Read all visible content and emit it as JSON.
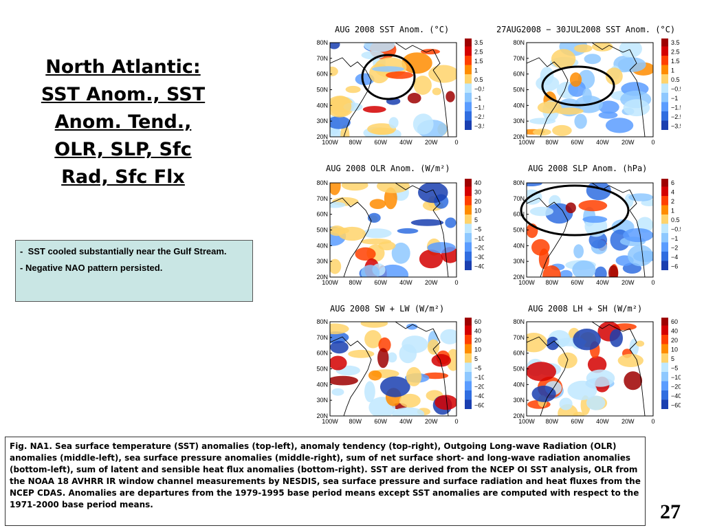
{
  "slide": {
    "title_lines": [
      "North Atlantic:",
      "SST Anom., SST",
      "Anom. Tend.,",
      "OLR, SLP, Sfc",
      "Rad, Sfc Flx"
    ],
    "page_number": "27"
  },
  "notes": [
    "SST cooled substantially near the Gulf Stream.",
    "Negative NAO pattern persisted."
  ],
  "caption": "Fig. NA1. Sea surface temperature (SST) anomalies (top-left), anomaly tendency (top-right), Outgoing Long-wave Radiation (OLR) anomalies (middle-left), sea surface pressure anomalies (middle-right), sum of net surface short- and long-wave radiation anomalies (bottom-left), sum of latent and sensible heat flux anomalies (bottom-right). SST are derived from the NCEP OI SST analysis, OLR from the NOAA 18 AVHRR IR window channel measurements by NESDIS, sea surface pressure and surface radiation and heat fluxes from the NCEP CDAS. Anomalies are departures from the 1979-1995 base period means except SST anomalies are computed with respect to the 1971-2000 base period means.",
  "axes": {
    "lat_labels": [
      "80N",
      "70N",
      "60N",
      "50N",
      "40N",
      "30N",
      "20N"
    ],
    "lon_labels": [
      "100W",
      "80W",
      "60W",
      "40W",
      "20W",
      "0"
    ]
  },
  "maps": [
    {
      "title": "AUG 2008 SST Anom. (°C)",
      "legend": [
        "3.5",
        "2.5",
        "1.5",
        "1",
        "0.5",
        "−0.5",
        "−1",
        "−1.5",
        "−2.5",
        "−3.5"
      ],
      "circled": true
    },
    {
      "title": "27AUG2008 − 30JUL2008 SST Anom. (°C)",
      "legend": [
        "3.5",
        "2.5",
        "1.5",
        "1",
        "0.5",
        "−0.5",
        "−1",
        "−1.5",
        "−2.5",
        "−3.5"
      ],
      "circled": true
    },
    {
      "title": "AUG 2008 OLR Anom. (W/m²)",
      "legend": [
        "40",
        "30",
        "20",
        "10",
        "5",
        "−5",
        "−10",
        "−20",
        "−30",
        "−40"
      ],
      "circled": false
    },
    {
      "title": "AUG 2008 SLP Anom. (hPa)",
      "legend": [
        "6",
        "4",
        "2",
        "1",
        "0.5",
        "−0.5",
        "−1",
        "−2",
        "−4",
        "−6"
      ],
      "circled": true
    },
    {
      "title": "AUG 2008 SW + LW (W/m²)",
      "legend": [
        "60",
        "40",
        "20",
        "10",
        "5",
        "−5",
        "−10",
        "−20",
        "−40",
        "−60"
      ],
      "circled": false
    },
    {
      "title": "AUG 2008 LH + SH (W/m²)",
      "legend": [
        "60",
        "40",
        "20",
        "10",
        "5",
        "−5",
        "−10",
        "−20",
        "−40",
        "−60"
      ],
      "circled": false
    }
  ],
  "colors": {
    "scale_warm": [
      "#9e0000",
      "#d40000",
      "#ff4000",
      "#ff8c00",
      "#ffd36b"
    ],
    "scale_cool": [
      "#bfe8ff",
      "#8ec8ff",
      "#5a9cff",
      "#2f6de0",
      "#1a3fb0"
    ],
    "notes_bg": "#c9e6e4"
  }
}
